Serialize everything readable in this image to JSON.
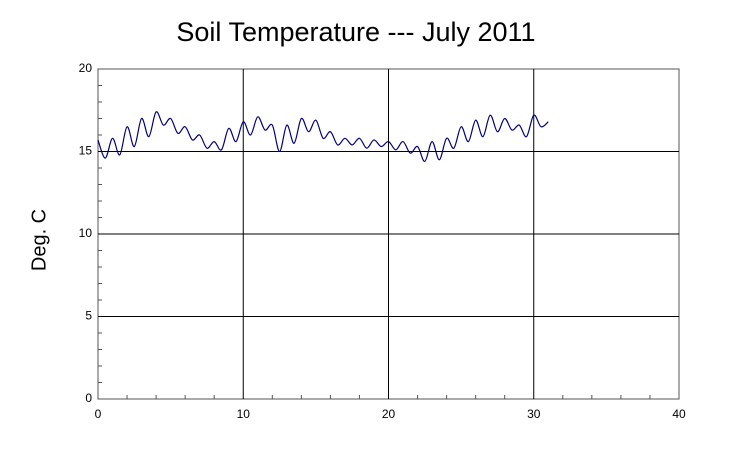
{
  "chart_data": {
    "type": "line",
    "title": "Soil Temperature --- July 2011",
    "ylabel": "Deg. C",
    "x": [
      0,
      0.5,
      1,
      1.5,
      2,
      2.5,
      3,
      3.5,
      4,
      4.5,
      5,
      5.5,
      6,
      6.5,
      7,
      7.5,
      8,
      8.5,
      9,
      9.5,
      10,
      10.5,
      11,
      11.5,
      12,
      12.5,
      13,
      13.5,
      14,
      14.5,
      15,
      15.5,
      16,
      16.5,
      17,
      17.5,
      18,
      18.5,
      19,
      19.5,
      20,
      20.5,
      21,
      21.5,
      22,
      22.5,
      23,
      23.5,
      24,
      24.5,
      25,
      25.5,
      26,
      26.5,
      27,
      27.5,
      28,
      28.5,
      29,
      29.5,
      30,
      30.5,
      31
    ],
    "series": [
      {
        "name": "Soil Temperature",
        "color": "#00007f",
        "values": [
          15.7,
          14.6,
          15.8,
          14.8,
          16.5,
          15.3,
          17.0,
          15.9,
          17.4,
          16.6,
          17.0,
          16.1,
          16.5,
          15.7,
          16.0,
          15.2,
          15.6,
          15.1,
          16.4,
          15.6,
          16.8,
          16.0,
          17.1,
          16.3,
          16.6,
          15.0,
          16.6,
          15.5,
          17.0,
          16.2,
          16.9,
          15.8,
          16.2,
          15.4,
          15.8,
          15.4,
          15.8,
          15.2,
          15.7,
          15.3,
          15.6,
          15.1,
          15.6,
          14.9,
          15.3,
          14.4,
          15.6,
          14.5,
          15.8,
          15.2,
          16.5,
          15.6,
          16.9,
          15.9,
          17.2,
          16.2,
          17.0,
          16.3,
          16.6,
          15.9,
          17.2,
          16.5,
          16.8
        ]
      }
    ],
    "xlim": [
      0,
      40
    ],
    "xticks": [
      0,
      10,
      20,
      30,
      40
    ],
    "ylim": [
      0,
      20
    ],
    "yticks": [
      0,
      5,
      10,
      15,
      20
    ],
    "grid": true
  }
}
